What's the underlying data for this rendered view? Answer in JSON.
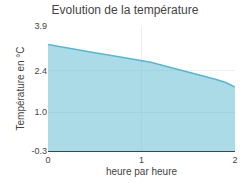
{
  "chart_data": {
    "type": "area",
    "title": "Evolution de la température",
    "xlabel": "heure par heure",
    "ylabel": "Température en °C",
    "x": [
      0,
      0.1,
      0.2,
      0.3,
      0.4,
      0.5,
      0.6,
      0.7,
      0.8,
      0.9,
      1.0,
      1.1,
      1.2,
      1.3,
      1.4,
      1.5,
      1.6,
      1.7,
      1.8,
      1.9,
      2.0
    ],
    "values": [
      3.28,
      3.22,
      3.16,
      3.1,
      3.05,
      3.0,
      2.95,
      2.9,
      2.85,
      2.8,
      2.75,
      2.68,
      2.6,
      2.52,
      2.44,
      2.36,
      2.28,
      2.2,
      2.1,
      2.0,
      1.85
    ],
    "color": "#55b8d0",
    "xlim": [
      0,
      2
    ],
    "xticks": [
      0,
      1,
      2
    ],
    "ylim": [
      -0.3,
      3.9
    ],
    "yticks": [
      -0.3,
      {
        "value": 1,
        "label": "1.0"
      },
      2.4,
      3.9
    ],
    "grid": true
  }
}
